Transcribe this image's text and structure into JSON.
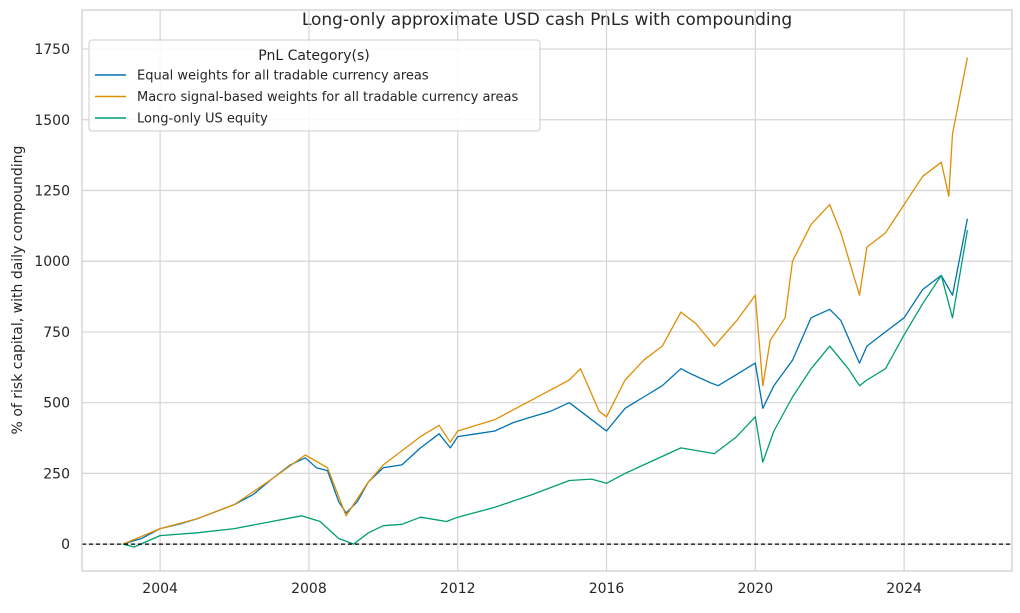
{
  "chart_data": {
    "type": "line",
    "title": "Long-only approximate USD cash PnLs with compounding",
    "xlabel": "",
    "ylabel": "% of risk capital, with daily compounding",
    "xlim": [
      2001.9,
      2026.9
    ],
    "ylim": [
      -95,
      1888
    ],
    "x_ticks": [
      2004,
      2008,
      2012,
      2016,
      2020,
      2024
    ],
    "y_ticks": [
      0,
      250,
      500,
      750,
      1000,
      1250,
      1500,
      1750
    ],
    "grid": true,
    "reference_line": {
      "y": 0,
      "style": "dashed",
      "color": "#000000"
    },
    "legend": {
      "title": "PnL Category(s)",
      "placement": "top-left"
    },
    "series": [
      {
        "name": "Equal weights for all tradable currency areas",
        "color": "#0173b2",
        "x": [
          2003.0,
          2003.5,
          2004.0,
          2004.5,
          2005.0,
          2005.5,
          2006.0,
          2006.5,
          2007.0,
          2007.5,
          2007.9,
          2008.2,
          2008.5,
          2008.8,
          2009.0,
          2009.3,
          2009.6,
          2010.0,
          2010.5,
          2011.0,
          2011.5,
          2011.8,
          2012.0,
          2012.5,
          2013.0,
          2013.5,
          2014.0,
          2014.5,
          2015.0,
          2015.3,
          2015.8,
          2016.0,
          2016.5,
          2017.0,
          2017.5,
          2018.0,
          2018.3,
          2018.8,
          2019.0,
          2019.5,
          2020.0,
          2020.2,
          2020.5,
          2021.0,
          2021.5,
          2022.0,
          2022.3,
          2022.6,
          2022.8,
          2023.0,
          2023.5,
          2024.0,
          2024.5,
          2025.0,
          2025.3,
          2025.7
        ],
        "y": [
          0,
          20,
          55,
          70,
          90,
          115,
          140,
          175,
          230,
          280,
          305,
          270,
          260,
          150,
          110,
          150,
          220,
          270,
          280,
          340,
          390,
          340,
          380,
          390,
          400,
          430,
          450,
          470,
          500,
          470,
          420,
          400,
          480,
          520,
          560,
          620,
          600,
          570,
          560,
          600,
          640,
          480,
          560,
          650,
          800,
          830,
          790,
          700,
          640,
          700,
          750,
          800,
          900,
          950,
          880,
          1150
        ]
      },
      {
        "name": "Macro signal-based weights for all tradable currency areas",
        "color": "#de8f05",
        "x": [
          2003.0,
          2004.0,
          2005.0,
          2006.0,
          2007.0,
          2007.9,
          2008.5,
          2009.0,
          2009.6,
          2010.0,
          2011.0,
          2011.5,
          2011.8,
          2012.0,
          2013.0,
          2014.0,
          2015.0,
          2015.3,
          2015.8,
          2016.0,
          2016.5,
          2017.0,
          2017.5,
          2018.0,
          2018.4,
          2018.9,
          2019.5,
          2020.0,
          2020.2,
          2020.4,
          2020.8,
          2021.0,
          2021.5,
          2022.0,
          2022.3,
          2022.8,
          2023.0,
          2023.5,
          2024.0,
          2024.5,
          2025.0,
          2025.2,
          2025.3,
          2025.7
        ],
        "y": [
          0,
          55,
          90,
          140,
          230,
          315,
          270,
          100,
          220,
          280,
          380,
          420,
          360,
          400,
          440,
          510,
          580,
          620,
          470,
          450,
          580,
          650,
          700,
          820,
          780,
          700,
          790,
          880,
          560,
          720,
          800,
          1000,
          1130,
          1200,
          1100,
          880,
          1050,
          1100,
          1200,
          1300,
          1350,
          1230,
          1450,
          1720
        ]
      },
      {
        "name": "Long-only US equity",
        "color": "#029e73",
        "x": [
          2003.0,
          2003.3,
          2004.0,
          2005.0,
          2006.0,
          2007.0,
          2007.8,
          2008.3,
          2008.8,
          2009.2,
          2009.6,
          2010.0,
          2010.5,
          2011.0,
          2011.7,
          2012.0,
          2013.0,
          2014.0,
          2015.0,
          2015.6,
          2016.0,
          2016.5,
          2017.0,
          2018.0,
          2018.9,
          2019.5,
          2020.0,
          2020.2,
          2020.5,
          2021.0,
          2021.5,
          2022.0,
          2022.5,
          2022.8,
          2023.0,
          2023.5,
          2024.0,
          2024.5,
          2025.0,
          2025.3,
          2025.7
        ],
        "y": [
          0,
          -10,
          30,
          40,
          55,
          80,
          100,
          80,
          20,
          0,
          40,
          65,
          70,
          95,
          80,
          95,
          130,
          175,
          225,
          230,
          215,
          250,
          280,
          340,
          320,
          380,
          450,
          290,
          400,
          520,
          620,
          700,
          620,
          560,
          580,
          620,
          740,
          850,
          950,
          800,
          1110
        ]
      }
    ]
  }
}
